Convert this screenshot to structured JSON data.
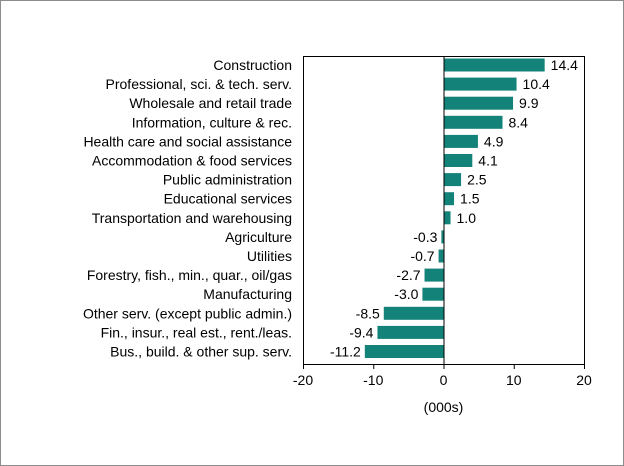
{
  "chart_data": {
    "type": "bar",
    "orientation": "horizontal",
    "categories": [
      "Construction",
      "Professional, sci. & tech. serv.",
      "Wholesale and retail trade",
      "Information, culture & rec.",
      "Health care and social assistance",
      "Accommodation & food services",
      "Public administration",
      "Educational services",
      "Transportation and warehousing",
      "Agriculture",
      "Utilities",
      "Forestry, fish., min., quar., oil/gas",
      "Manufacturing",
      "Other serv. (except public admin.)",
      "Fin., insur., real est., rent./leas.",
      "Bus., build. & other sup. serv."
    ],
    "values": [
      14.4,
      10.4,
      9.9,
      8.4,
      4.9,
      4.1,
      2.5,
      1.5,
      1.0,
      -0.3,
      -0.7,
      -2.7,
      -3.0,
      -8.5,
      -9.4,
      -11.2
    ],
    "value_labels": [
      "14.4",
      "10.4",
      "9.9",
      "8.4",
      "4.9",
      "4.1",
      "2.5",
      "1.5",
      "1.0",
      "-0.3",
      "-0.7",
      "-2.7",
      "-3.0",
      "-8.5",
      "-9.4",
      "-11.2"
    ],
    "title": "",
    "xlabel": "(000s)",
    "ylabel": "",
    "xlim": [
      -20,
      20
    ],
    "x_ticks": [
      -20,
      -10,
      0,
      10,
      20
    ],
    "x_tick_labels": [
      "-20",
      "-10",
      "0",
      "10",
      "20"
    ],
    "grid": false,
    "legend": "none",
    "bar_color": "#138278"
  }
}
